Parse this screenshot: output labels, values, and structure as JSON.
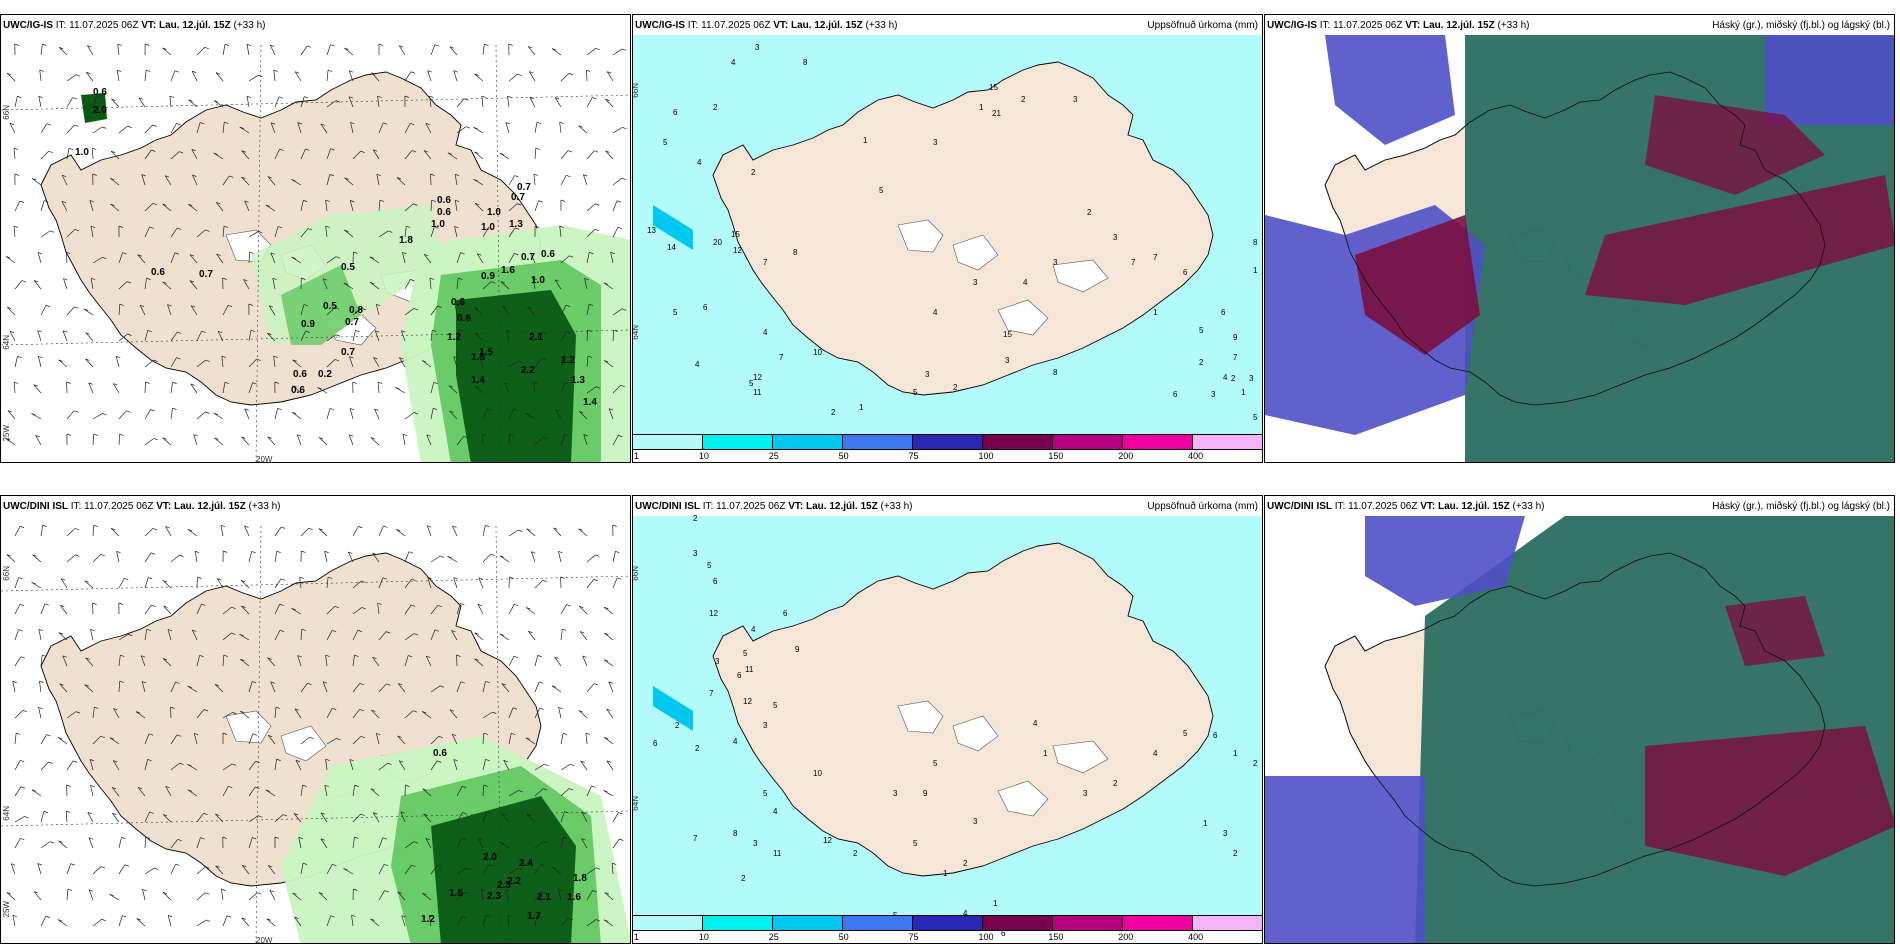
{
  "panels": [
    {
      "title_model": "UWC/IG-IS",
      "title_it_label": "IT:",
      "title_it": "11.07.2025 06Z",
      "title_vt_label": "VT:",
      "title_vt": "Lau. 12.júl. 15Z",
      "title_lead": "(+33 h)",
      "right_label": "",
      "values": [
        {
          "t": "0.6"
        },
        {
          "t": "2.0"
        },
        {
          "t": "1.0"
        },
        {
          "t": "0.6"
        },
        {
          "t": "0.7"
        },
        {
          "t": "0.5"
        },
        {
          "t": "1.8"
        },
        {
          "t": "0.6"
        },
        {
          "t": "0.6"
        },
        {
          "t": "1.0"
        },
        {
          "t": "1.0"
        },
        {
          "t": "1.0"
        },
        {
          "t": "0.7"
        },
        {
          "t": "0.7"
        },
        {
          "t": "1.3"
        },
        {
          "t": "0.7"
        },
        {
          "t": "0.6"
        },
        {
          "t": "1.0"
        },
        {
          "t": "0.6"
        },
        {
          "t": "0.6"
        },
        {
          "t": "0.5"
        },
        {
          "t": "0.7"
        },
        {
          "t": "0.7"
        },
        {
          "t": "0.9"
        },
        {
          "t": "0.8"
        },
        {
          "t": "0.9"
        },
        {
          "t": "0.6"
        },
        {
          "t": "0.2"
        },
        {
          "t": "0.6"
        },
        {
          "t": "1.2"
        },
        {
          "t": "1.5"
        },
        {
          "t": "2.1"
        },
        {
          "t": "1.2"
        },
        {
          "t": "2.2"
        },
        {
          "t": "1.5"
        },
        {
          "t": "1.4"
        },
        {
          "t": "1.3"
        },
        {
          "t": "1.4"
        },
        {
          "t": "1.6"
        }
      ],
      "coords": {
        "lat_top": "66N",
        "lat_mid": "64N",
        "lon_left": "25W",
        "lon_mid": "20W"
      }
    },
    {
      "title_model": "UWC/IG-IS",
      "title_it_label": "IT:",
      "title_it": "11.07.2025 06Z",
      "title_vt_label": "VT:",
      "title_vt": "Lau. 12.júl. 15Z",
      "title_lead": "(+33 h)",
      "right_label": "Uppsöfnuð úrkoma (mm)",
      "values": [
        {
          "t": "3"
        },
        {
          "t": "4"
        },
        {
          "t": "8"
        },
        {
          "t": "2"
        },
        {
          "t": "6"
        },
        {
          "t": "5"
        },
        {
          "t": "4"
        },
        {
          "t": "2"
        },
        {
          "t": "1"
        },
        {
          "t": "5"
        },
        {
          "t": "3"
        },
        {
          "t": "1"
        },
        {
          "t": "15"
        },
        {
          "t": "21"
        },
        {
          "t": "2"
        },
        {
          "t": "3"
        },
        {
          "t": "13"
        },
        {
          "t": "14"
        },
        {
          "t": "20"
        },
        {
          "t": "15"
        },
        {
          "t": "12"
        },
        {
          "t": "8"
        },
        {
          "t": "5"
        },
        {
          "t": "7"
        },
        {
          "t": "6"
        },
        {
          "t": "4"
        },
        {
          "t": "4"
        },
        {
          "t": "7"
        },
        {
          "t": "12"
        },
        {
          "t": "5"
        },
        {
          "t": "11"
        },
        {
          "t": "10"
        },
        {
          "t": "8"
        },
        {
          "t": "15"
        },
        {
          "t": "3"
        },
        {
          "t": "2"
        },
        {
          "t": "1"
        },
        {
          "t": "3"
        },
        {
          "t": "5"
        },
        {
          "t": "2"
        },
        {
          "t": "4"
        },
        {
          "t": "3"
        },
        {
          "t": "4"
        },
        {
          "t": "3"
        },
        {
          "t": "2"
        },
        {
          "t": "3"
        },
        {
          "t": "7"
        },
        {
          "t": "6"
        },
        {
          "t": "5"
        },
        {
          "t": "9"
        },
        {
          "t": "7"
        },
        {
          "t": "1"
        },
        {
          "t": "2"
        },
        {
          "t": "4"
        },
        {
          "t": "6"
        },
        {
          "t": "3"
        },
        {
          "t": "2"
        },
        {
          "t": "1"
        },
        {
          "t": "1"
        },
        {
          "t": "6"
        },
        {
          "t": "7"
        },
        {
          "t": "3"
        },
        {
          "t": "5"
        },
        {
          "t": "8"
        }
      ],
      "colorbar": {
        "colors": [
          "#b3fafa",
          "#00f0f0",
          "#00c8f0",
          "#3c78f0",
          "#2828b4",
          "#780050",
          "#b4007f",
          "#f000a0",
          "#f5b4f5"
        ],
        "labels": [
          "1",
          "10",
          "25",
          "50",
          "75",
          "100",
          "150",
          "200",
          "400"
        ]
      },
      "coords": {
        "lat_top": "66N",
        "lat_mid": "64N"
      }
    },
    {
      "title_model": "UWC/IG-IS",
      "title_it_label": "IT:",
      "title_it": "11.07.2025 06Z",
      "title_vt_label": "VT:",
      "title_vt": "Lau. 12.júl. 15Z",
      "title_lead": "(+33 h)",
      "right_label": "Háský (gr.), miðský (fj.bl.) og lágský (bl.)"
    },
    {
      "title_model": "UWC/DINI ISL",
      "title_it_label": "IT:",
      "title_it": "11.07.2025 06Z",
      "title_vt_label": "VT:",
      "title_vt": "Lau. 12.júl. 15Z",
      "title_lead": "(+33 h)",
      "right_label": "",
      "values": [
        {
          "t": "0.6"
        },
        {
          "t": "2.0"
        },
        {
          "t": "2.4"
        },
        {
          "t": "2.2"
        },
        {
          "t": "2.3"
        },
        {
          "t": "1.6"
        },
        {
          "t": "2.3"
        },
        {
          "t": "1.7"
        },
        {
          "t": "2.1"
        },
        {
          "t": "1.6"
        },
        {
          "t": "1.8"
        },
        {
          "t": "1.2"
        }
      ],
      "coords": {
        "lat_top": "66N",
        "lat_mid": "64N",
        "lon_left": "25W",
        "lon_mid": "20W"
      }
    },
    {
      "title_model": "UWC/DINI ISL",
      "title_it_label": "IT:",
      "title_it": "11.07.2025 06Z",
      "title_vt_label": "VT:",
      "title_vt": "Lau. 12.júl. 15Z",
      "title_lead": "(+33 h)",
      "right_label": "Uppsöfnuð úrkoma (mm)",
      "values": [
        {
          "t": "2"
        },
        {
          "t": "3"
        },
        {
          "t": "5"
        },
        {
          "t": "6"
        },
        {
          "t": "12"
        },
        {
          "t": "4"
        },
        {
          "t": "6"
        },
        {
          "t": "5"
        },
        {
          "t": "3"
        },
        {
          "t": "11"
        },
        {
          "t": "7"
        },
        {
          "t": "9"
        },
        {
          "t": "6"
        },
        {
          "t": "12"
        },
        {
          "t": "5"
        },
        {
          "t": "2"
        },
        {
          "t": "2"
        },
        {
          "t": "4"
        },
        {
          "t": "3"
        },
        {
          "t": "6"
        },
        {
          "t": "5"
        },
        {
          "t": "7"
        },
        {
          "t": "4"
        },
        {
          "t": "8"
        },
        {
          "t": "3"
        },
        {
          "t": "2"
        },
        {
          "t": "11"
        },
        {
          "t": "12"
        },
        {
          "t": "10"
        },
        {
          "t": "9"
        },
        {
          "t": "5"
        },
        {
          "t": "3"
        },
        {
          "t": "2"
        },
        {
          "t": "1"
        },
        {
          "t": "2"
        },
        {
          "t": "3"
        },
        {
          "t": "5"
        },
        {
          "t": "4"
        },
        {
          "t": "1"
        },
        {
          "t": "3"
        },
        {
          "t": "2"
        },
        {
          "t": "4"
        },
        {
          "t": "5"
        },
        {
          "t": "6"
        },
        {
          "t": "1"
        },
        {
          "t": "2"
        },
        {
          "t": "1"
        },
        {
          "t": "3"
        },
        {
          "t": "2"
        },
        {
          "t": "4"
        },
        {
          "t": "1"
        },
        {
          "t": "6"
        },
        {
          "t": "5"
        }
      ],
      "colorbar": {
        "colors": [
          "#b3fafa",
          "#00f0f0",
          "#00c8f0",
          "#3c78f0",
          "#2828b4",
          "#780050",
          "#b4007f",
          "#f000a0",
          "#f5b4f5"
        ],
        "labels": [
          "1",
          "10",
          "25",
          "50",
          "75",
          "100",
          "150",
          "200",
          "400"
        ]
      },
      "coords": {
        "lat_top": "66N",
        "lat_mid": "64N"
      }
    },
    {
      "title_model": "UWC/DINI ISL",
      "title_it_label": "IT:",
      "title_it": "11.07.2025 06Z",
      "title_vt_label": "VT:",
      "title_vt": "Lau. 12.júl. 15Z",
      "title_lead": "(+33 h)",
      "right_label": "Háský (gr.), miðský (fj.bl.) og lágský (bl.)"
    }
  ],
  "colors": {
    "land": "#f5e6d8",
    "land_beige": "#efe0cf",
    "precip_light": "#c8f5c0",
    "precip_mid": "#64c864",
    "precip_dark": "#0a5a14",
    "rain_cyan": "#b3fafa",
    "cloud_high": "#2a6e60",
    "cloud_mid": "#7a1040",
    "cloud_low": "#5050c8"
  }
}
